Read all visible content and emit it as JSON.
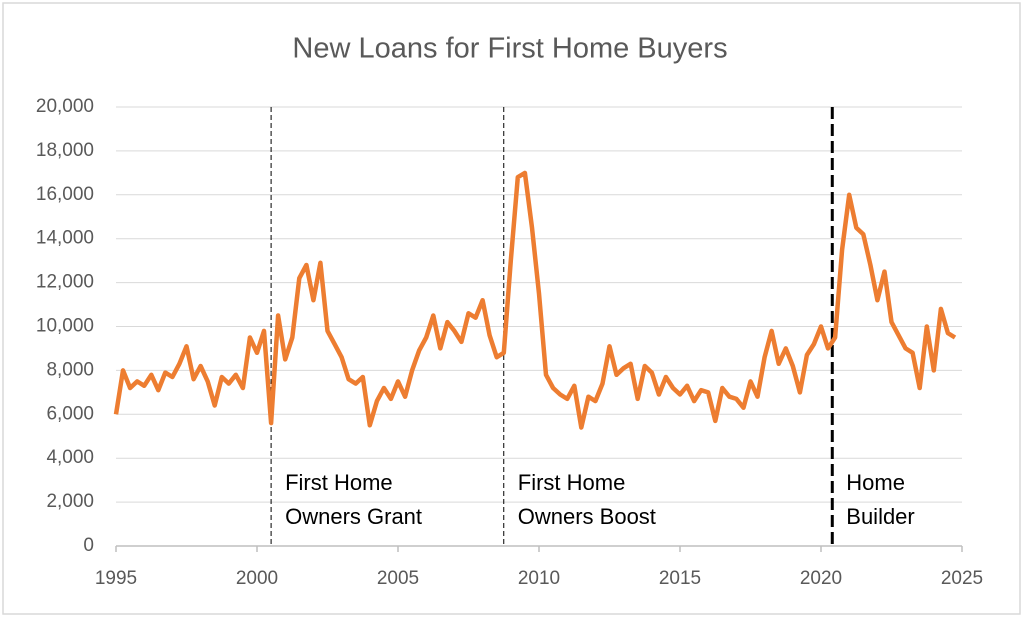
{
  "chart_data": {
    "type": "line",
    "title": "New Loans for First Home Buyers",
    "color": "#ed7d31",
    "grid": true,
    "x": [
      1995,
      1995.25,
      1995.5,
      1995.75,
      1996,
      1996.25,
      1996.5,
      1996.75,
      1997,
      1997.25,
      1997.5,
      1997.75,
      1998,
      1998.25,
      1998.5,
      1998.75,
      1999,
      1999.25,
      1999.5,
      1999.75,
      2000,
      2000.25,
      2000.5,
      2000.75,
      2001,
      2001.25,
      2001.5,
      2001.75,
      2002,
      2002.25,
      2002.5,
      2002.75,
      2003,
      2003.25,
      2003.5,
      2003.75,
      2004,
      2004.25,
      2004.5,
      2004.75,
      2005,
      2005.25,
      2005.5,
      2005.75,
      2006,
      2006.25,
      2006.5,
      2006.75,
      2007,
      2007.25,
      2007.5,
      2007.75,
      2008,
      2008.25,
      2008.5,
      2008.75,
      2009,
      2009.25,
      2009.5,
      2009.75,
      2010,
      2010.25,
      2010.5,
      2010.75,
      2011,
      2011.25,
      2011.5,
      2011.75,
      2012,
      2012.25,
      2012.5,
      2012.75,
      2013,
      2013.25,
      2013.5,
      2013.75,
      2014,
      2014.25,
      2014.5,
      2014.75,
      2015,
      2015.25,
      2015.5,
      2015.75,
      2016,
      2016.25,
      2016.5,
      2016.75,
      2017,
      2017.25,
      2017.5,
      2017.75,
      2018,
      2018.25,
      2018.5,
      2018.75,
      2019,
      2019.25,
      2019.5,
      2019.75,
      2020,
      2020.25,
      2020.5,
      2020.75,
      2021,
      2021.25,
      2021.5,
      2021.75,
      2022,
      2022.25,
      2022.5,
      2022.75,
      2023,
      2023.25,
      2023.5,
      2023.75,
      2024,
      2024.25,
      2024.5,
      2024.75
    ],
    "values": [
      6000,
      8000,
      7200,
      7500,
      7300,
      7800,
      7100,
      7900,
      7700,
      8300,
      9100,
      7600,
      8200,
      7500,
      6400,
      7700,
      7400,
      7800,
      7200,
      9500,
      8800,
      9800,
      5600,
      10500,
      8500,
      9500,
      12200,
      12800,
      11200,
      12900,
      9800,
      9200,
      8600,
      7600,
      7400,
      7700,
      5500,
      6600,
      7200,
      6700,
      7500,
      6800,
      8000,
      8900,
      9500,
      10500,
      9000,
      10200,
      9800,
      9300,
      10600,
      10400,
      11200,
      9600,
      8600,
      8800,
      13000,
      16800,
      17000,
      14500,
      11500,
      7800,
      7200,
      6900,
      6700,
      7300,
      5400,
      6800,
      6600,
      7400,
      9100,
      7800,
      8100,
      8300,
      6700,
      8200,
      7900,
      6900,
      7700,
      7200,
      6900,
      7300,
      6600,
      7100,
      7000,
      5700,
      7200,
      6800,
      6700,
      6300,
      7500,
      6800,
      8600,
      9800,
      8300,
      9000,
      8200,
      7000,
      8700,
      9200,
      10000,
      9000,
      9500,
      13500,
      16000,
      14500,
      14200,
      12800,
      11200,
      12500,
      10200,
      9600,
      9000,
      8800,
      7200,
      10000,
      8000,
      10800,
      9700,
      9500
    ],
    "xlim": [
      1995,
      2025
    ],
    "xticks": [
      1995,
      2000,
      2005,
      2010,
      2015,
      2020,
      2025
    ],
    "ylim": [
      0,
      20000
    ],
    "yticks": [
      0,
      {
        "value": 2000,
        "label": "2,000"
      },
      {
        "value": 4000,
        "label": "4,000"
      },
      {
        "value": 6000,
        "label": "6,000"
      },
      {
        "value": 8000,
        "label": "8,000"
      },
      {
        "value": 10000,
        "label": "10,000"
      },
      {
        "value": 12000,
        "label": "12,000"
      },
      {
        "value": 14000,
        "label": "14,000"
      },
      {
        "value": 16000,
        "label": "16,000"
      },
      {
        "value": 18000,
        "label": "18,000"
      },
      {
        "value": 20000,
        "label": "20,000"
      }
    ],
    "annotations": [
      {
        "x": 2000.5,
        "lines": [
          "First Home",
          "Owners Grant"
        ]
      },
      {
        "x": 2008.75,
        "lines": [
          "First Home",
          "Owners Boost"
        ]
      },
      {
        "x": 2020.4,
        "lines": [
          "Home",
          "Builder"
        ]
      }
    ]
  }
}
